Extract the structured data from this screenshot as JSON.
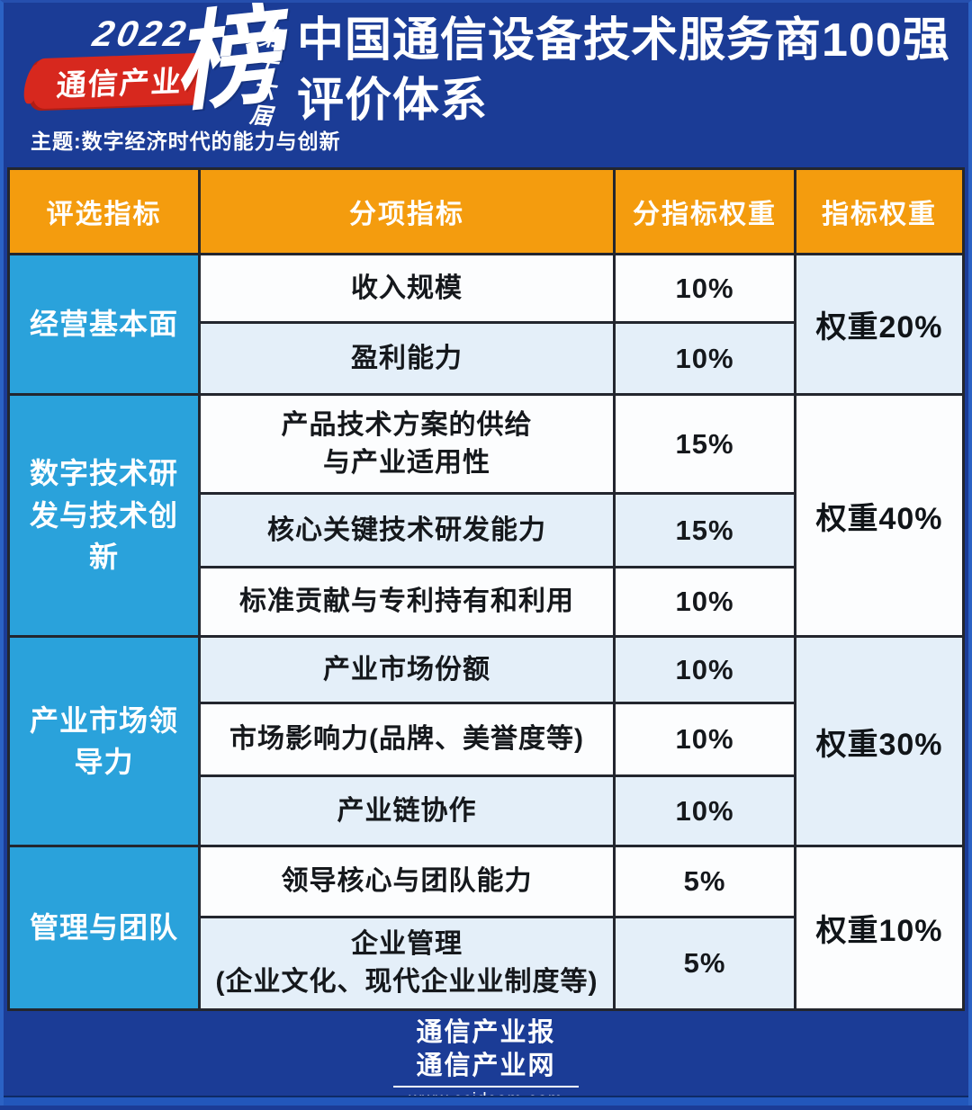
{
  "logo": {
    "year": "2022",
    "brand": "通信产业",
    "bang": "榜",
    "edition": "第十六届",
    "theme": "主题:数字经济时代的能力与创新"
  },
  "title": {
    "line1": "中国通信设备技术服务商100强",
    "line2": "评价体系"
  },
  "table": {
    "headers": [
      "评选指标",
      "分项指标",
      "分指标权重",
      "指标权重"
    ]
  },
  "groups": [
    {
      "name": "经营基本面",
      "weight": "权重20%",
      "rows": [
        {
          "label": "收入规模",
          "value": "10%"
        },
        {
          "label": "盈利能力",
          "value": "10%"
        }
      ]
    },
    {
      "name": "数字技术研发与技术创新",
      "weight": "权重40%",
      "rows": [
        {
          "label": "产品技术方案的供给\n与产业适用性",
          "value": "15%"
        },
        {
          "label": "核心关键技术研发能力",
          "value": "15%"
        },
        {
          "label": "标准贡献与专利持有和利用",
          "value": "10%"
        }
      ]
    },
    {
      "name": "产业市场领导力",
      "weight": "权重30%",
      "rows": [
        {
          "label": "产业市场份额",
          "value": "10%"
        },
        {
          "label": "市场影响力(品牌、美誉度等)",
          "value": "10%"
        },
        {
          "label": "产业链协作",
          "value": "10%"
        }
      ]
    },
    {
      "name": "管理与团队",
      "weight": "权重10%",
      "rows": [
        {
          "label": "领导核心与团队能力",
          "value": "5%"
        },
        {
          "label": "企业管理\n(企业文化、现代企业业制度等)",
          "value": "5%"
        }
      ]
    }
  ],
  "footer": {
    "line1": "通信产业报",
    "line2": "通信产业网",
    "url": "www.ccidcom.com"
  },
  "colors": {
    "background_navy": "#1B3C96",
    "header_orange": "#F49C0E",
    "group_sky_blue": "#2AA2DB",
    "row_light_blue": "#E4EFF9",
    "row_white": "#FCFDFE",
    "brush_red": "#D7281E",
    "grid_line": "#23262e",
    "frame_blue": "#2B62C4"
  },
  "chart_data": {
    "type": "table",
    "title": "中国通信设备技术服务商100强评价体系",
    "columns": [
      "评选指标",
      "分项指标",
      "分指标权重",
      "指标权重"
    ],
    "rows": [
      [
        "经营基本面",
        "收入规模",
        "10%",
        "权重20%"
      ],
      [
        "经营基本面",
        "盈利能力",
        "10%",
        "权重20%"
      ],
      [
        "数字技术研发与技术创新",
        "产品技术方案的供给与产业适用性",
        "15%",
        "权重40%"
      ],
      [
        "数字技术研发与技术创新",
        "核心关键技术研发能力",
        "15%",
        "权重40%"
      ],
      [
        "数字技术研发与技术创新",
        "标准贡献与专利持有和利用",
        "10%",
        "权重40%"
      ],
      [
        "产业市场领导力",
        "产业市场份额",
        "10%",
        "权重30%"
      ],
      [
        "产业市场领导力",
        "市场影响力(品牌、美誉度等)",
        "10%",
        "权重30%"
      ],
      [
        "产业市场领导力",
        "产业链协作",
        "10%",
        "权重30%"
      ],
      [
        "管理与团队",
        "领导核心与团队能力",
        "5%",
        "权重10%"
      ],
      [
        "管理与团队",
        "企业管理(企业文化、现代企业业制度等)",
        "5%",
        "权重10%"
      ]
    ]
  }
}
